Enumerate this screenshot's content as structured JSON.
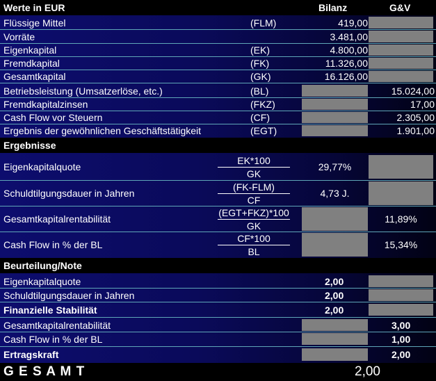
{
  "header": {
    "title": "Werte in EUR",
    "col_bilanz": "Bilanz",
    "col_gv": "G&V"
  },
  "balance_rows": [
    {
      "label": "Flüssige Mittel",
      "abbr": "(FLM)",
      "bilanz": "419,00",
      "gv": ""
    },
    {
      "label": "Vorräte",
      "abbr": "",
      "bilanz": "3.481,00",
      "gv": ""
    },
    {
      "label": "Eigenkapital",
      "abbr": "(EK)",
      "bilanz": "4.800,00",
      "gv": ""
    },
    {
      "label": "Fremdkapital",
      "abbr": "(FK)",
      "bilanz": "11.326,00",
      "gv": ""
    },
    {
      "label": "Gesamtkapital",
      "abbr": "(GK)",
      "bilanz": "16.126,00",
      "gv": ""
    },
    {
      "label": "Betriebsleistung (Umsatzerlöse, etc.)",
      "abbr": "(BL)",
      "bilanz": "",
      "gv": "15.024,00"
    },
    {
      "label": "Fremdkapitalzinsen",
      "abbr": "(FKZ)",
      "bilanz": "",
      "gv": "17,00"
    },
    {
      "label": "Cash Flow vor Steuern",
      "abbr": "(CF)",
      "bilanz": "",
      "gv": "2.305,00"
    },
    {
      "label": "Ergebnis der gewöhnlichen Geschäftstätigkeit",
      "abbr": "(EGT)",
      "bilanz": "",
      "gv": "1.901,00"
    }
  ],
  "results": {
    "title": "Ergebnisse",
    "rows": [
      {
        "label": "Eigenkapitalquote",
        "numerator": "EK*100",
        "denominator": "GK",
        "bilanz": "29,77%",
        "gv": ""
      },
      {
        "label": "Schuldtilgungsdauer in Jahren",
        "numerator": "(FK-FLM)",
        "denominator": "CF",
        "bilanz": "4,73 J.",
        "gv": ""
      },
      {
        "label": "Gesamtkapitalrentabilität",
        "numerator": "(EGT+FKZ)*100",
        "denominator": "GK",
        "bilanz": "",
        "gv": "11,89%"
      },
      {
        "label": "Cash Flow in % der BL",
        "numerator": "CF*100",
        "denominator": "BL",
        "bilanz": "",
        "gv": "15,34%"
      }
    ]
  },
  "rating": {
    "title": "Beurteilung/Note",
    "rows": [
      {
        "label": "Eigenkapitalquote",
        "bilanz": "2,00",
        "gv": ""
      },
      {
        "label": "Schuldtilgungsdauer in Jahren",
        "bilanz": "2,00",
        "gv": ""
      },
      {
        "label": "Finanzielle Stabilität",
        "bilanz": "2,00",
        "gv": ""
      },
      {
        "label": "Gesamtkapitalrentabilität",
        "bilanz": "",
        "gv": "3,00"
      },
      {
        "label": "Cash Flow in % der BL",
        "bilanz": "",
        "gv": "1,00"
      },
      {
        "label": "Ertragskraft",
        "bilanz": "",
        "gv": "2,00"
      }
    ]
  },
  "total": {
    "label": "G E S A M T",
    "value": "2,00"
  }
}
